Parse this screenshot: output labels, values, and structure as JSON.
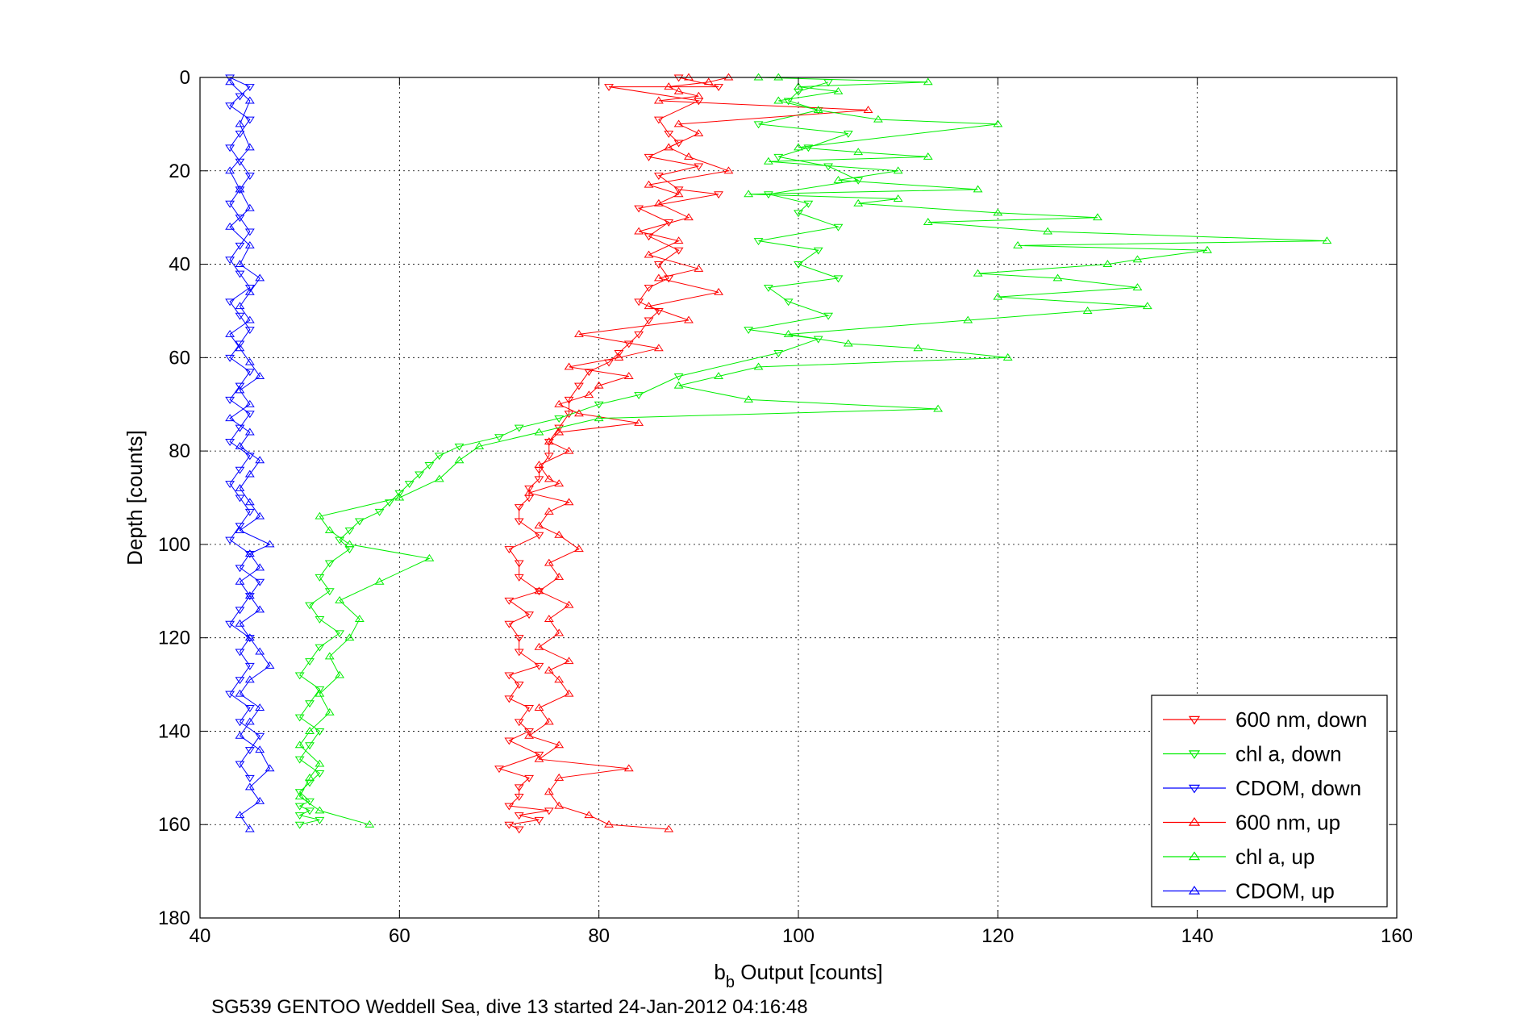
{
  "chart_data": {
    "type": "line",
    "xlabel_main": "b",
    "xlabel_sub": "b",
    "xlabel_rest": " Output [counts]",
    "ylabel": "Depth [counts]",
    "footer": "SG539 GENTOO Weddell Sea, dive 13 started 24-Jan-2012 04:16:48",
    "xlim": [
      40,
      160
    ],
    "ylim": [
      0,
      180
    ],
    "y_reversed": true,
    "x_ticks": [
      "40",
      "60",
      "80",
      "100",
      "120",
      "140",
      "160"
    ],
    "y_ticks": [
      "0",
      "20",
      "40",
      "60",
      "80",
      "100",
      "120",
      "140",
      "160",
      "180"
    ],
    "grid": true,
    "legend_position": "bottom-right",
    "series": [
      {
        "name": "600 nm, down",
        "color": "#ff0000",
        "marker": "triangle-down",
        "x": [
          88,
          92,
          81,
          90,
          86,
          87,
          88,
          85,
          90,
          86,
          88,
          92,
          84,
          87,
          85,
          88,
          86,
          87,
          85,
          84,
          86,
          85,
          84,
          83,
          82,
          81,
          79,
          78,
          77,
          77,
          76,
          75,
          75,
          74,
          74,
          73,
          73,
          72,
          72,
          74,
          71,
          72,
          72,
          74,
          71,
          73,
          71,
          72,
          72,
          74,
          71,
          72,
          71,
          73,
          72,
          73,
          71,
          74,
          70,
          73,
          72,
          72,
          71,
          75,
          72,
          74,
          71,
          72
        ],
        "y": [
          0,
          2,
          2,
          5,
          9,
          12,
          14,
          17,
          19,
          21,
          24,
          25,
          28,
          31,
          34,
          37,
          40,
          43,
          45,
          48,
          50,
          52,
          55,
          57,
          59,
          61,
          63,
          66,
          69,
          72,
          75,
          78,
          81,
          84,
          86,
          88,
          90,
          92,
          95,
          98,
          101,
          104,
          107,
          110,
          112,
          115,
          117,
          120,
          123,
          126,
          128,
          130,
          133,
          135,
          138,
          140,
          142,
          145,
          148,
          150,
          152,
          154,
          156,
          157,
          158,
          159,
          160,
          161
        ]
      },
      {
        "name": "chl a, down",
        "color": "#00ee00",
        "marker": "triangle-down",
        "x": [
          103,
          100,
          99,
          102,
          96,
          105,
          101,
          98,
          103,
          106,
          97,
          101,
          100,
          104,
          96,
          102,
          100,
          104,
          97,
          99,
          103,
          95,
          102,
          98,
          88,
          84,
          80,
          76,
          72,
          70,
          66,
          64,
          63,
          62,
          61,
          60,
          59,
          58,
          56,
          55,
          54,
          55,
          53,
          52,
          53,
          51,
          52,
          54,
          52,
          51,
          50,
          52,
          51,
          50,
          52,
          51,
          50,
          52,
          51,
          50,
          51,
          50,
          51,
          50,
          52,
          50
        ],
        "y": [
          1,
          3,
          5,
          7,
          10,
          12,
          15,
          17,
          19,
          22,
          25,
          27,
          29,
          32,
          35,
          37,
          40,
          43,
          45,
          48,
          51,
          54,
          56,
          59,
          64,
          68,
          70,
          73,
          75,
          77,
          79,
          81,
          83,
          85,
          87,
          89,
          91,
          93,
          95,
          97,
          99,
          101,
          104,
          107,
          110,
          113,
          116,
          119,
          122,
          125,
          128,
          131,
          134,
          137,
          140,
          143,
          146,
          149,
          151,
          153,
          155,
          156,
          157,
          158,
          159,
          160
        ]
      },
      {
        "name": "CDOM, down",
        "color": "#0000ff",
        "marker": "triangle-down",
        "x": [
          43,
          45,
          44,
          43,
          45,
          44,
          43,
          44,
          45,
          44,
          43,
          44,
          45,
          44,
          43,
          44,
          45,
          43,
          44,
          45,
          44,
          43,
          45,
          44,
          43,
          45,
          44,
          43,
          45,
          44,
          43,
          44,
          45,
          44,
          43,
          45,
          44,
          46,
          45,
          44,
          43,
          45,
          44,
          45,
          44,
          43,
          45,
          44,
          46,
          45,
          44,
          45
        ],
        "y": [
          0,
          2,
          4,
          6,
          9,
          12,
          15,
          18,
          21,
          24,
          27,
          30,
          33,
          36,
          39,
          42,
          45,
          48,
          51,
          54,
          57,
          60,
          63,
          66,
          69,
          72,
          75,
          78,
          81,
          84,
          87,
          90,
          93,
          96,
          99,
          102,
          105,
          108,
          111,
          114,
          117,
          120,
          123,
          126,
          129,
          132,
          135,
          138,
          141,
          144,
          147,
          150
        ]
      },
      {
        "name": "600 nm, up",
        "color": "#ff0000",
        "marker": "triangle-up",
        "x": [
          87,
          81,
          79,
          76,
          75,
          76,
          83,
          74,
          76,
          73,
          75,
          74,
          77,
          76,
          75,
          77,
          74,
          76,
          75,
          77,
          74,
          76,
          75,
          78,
          76,
          74,
          75,
          77,
          73,
          76,
          75,
          74,
          77,
          75,
          76,
          84,
          78,
          76,
          79,
          80,
          83,
          77,
          82,
          86,
          78,
          89,
          85,
          92,
          86,
          90,
          85,
          88,
          84,
          89,
          86,
          88,
          85,
          93,
          89,
          87,
          90,
          88,
          107,
          86,
          90,
          88,
          87,
          91,
          93,
          89
        ],
        "y": [
          161,
          160,
          158,
          156,
          153,
          150,
          148,
          146,
          143,
          141,
          138,
          135,
          132,
          129,
          127,
          125,
          122,
          119,
          116,
          113,
          110,
          107,
          104,
          101,
          98,
          96,
          93,
          91,
          89,
          87,
          86,
          83,
          80,
          78,
          76,
          74,
          72,
          70,
          68,
          66,
          64,
          62,
          60,
          58,
          55,
          52,
          49,
          46,
          43,
          41,
          38,
          35,
          33,
          30,
          27,
          25,
          23,
          20,
          17,
          15,
          12,
          10,
          7,
          5,
          4,
          3,
          2,
          1,
          0,
          0
        ]
      },
      {
        "name": "chl a, up",
        "color": "#00ee00",
        "marker": "triangle-up",
        "x": [
          57,
          52,
          50,
          51,
          52,
          50,
          51,
          53,
          52,
          54,
          53,
          55,
          56,
          54,
          58,
          63,
          55,
          53,
          52,
          60,
          64,
          66,
          68,
          74,
          80,
          114,
          95,
          88,
          92,
          96,
          121,
          112,
          105,
          99,
          117,
          129,
          135,
          120,
          134,
          126,
          118,
          131,
          134,
          141,
          122,
          153,
          125,
          113,
          130,
          120,
          106,
          110,
          95,
          118,
          104,
          110,
          97,
          113,
          106,
          100,
          120,
          108,
          102,
          98,
          104,
          100,
          113,
          96,
          98
        ],
        "y": [
          160,
          157,
          154,
          150,
          147,
          143,
          140,
          136,
          132,
          128,
          124,
          120,
          116,
          112,
          108,
          103,
          100,
          97,
          94,
          90,
          86,
          82,
          79,
          76,
          73,
          71,
          69,
          66,
          64,
          62,
          60,
          58,
          57,
          55,
          52,
          50,
          49,
          47,
          45,
          43,
          42,
          40,
          39,
          37,
          36,
          35,
          33,
          31,
          30,
          29,
          27,
          26,
          25,
          24,
          22,
          20,
          18,
          17,
          16,
          15,
          10,
          9,
          7,
          5,
          3,
          2,
          1,
          0,
          0
        ]
      },
      {
        "name": "CDOM, up",
        "color": "#0000ff",
        "marker": "triangle-up",
        "x": [
          45,
          44,
          46,
          45,
          47,
          46,
          44,
          45,
          46,
          44,
          45,
          47,
          46,
          45,
          44,
          46,
          45,
          44,
          46,
          45,
          47,
          44,
          46,
          45,
          44,
          45,
          46,
          44,
          45,
          43,
          45,
          44,
          46,
          45,
          44,
          43,
          45,
          44,
          45,
          46,
          44,
          45,
          43,
          45,
          44,
          43,
          45,
          44,
          45,
          43
        ],
        "y": [
          161,
          158,
          155,
          152,
          148,
          144,
          141,
          138,
          135,
          132,
          129,
          126,
          123,
          120,
          117,
          114,
          111,
          108,
          105,
          102,
          100,
          97,
          94,
          91,
          88,
          85,
          82,
          79,
          76,
          73,
          70,
          67,
          64,
          61,
          58,
          55,
          52,
          49,
          46,
          43,
          40,
          36,
          32,
          28,
          24,
          20,
          15,
          10,
          5,
          1
        ]
      }
    ]
  }
}
